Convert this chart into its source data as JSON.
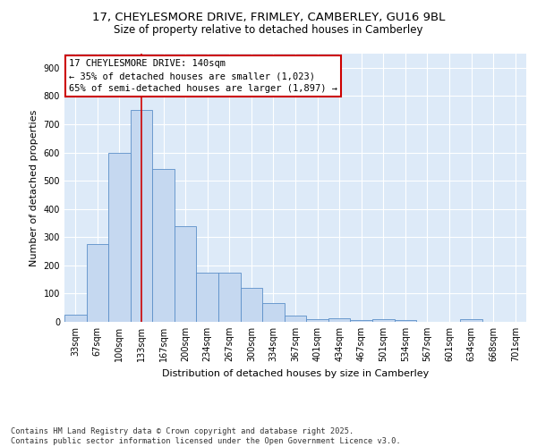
{
  "title_line1": "17, CHEYLESMORE DRIVE, FRIMLEY, CAMBERLEY, GU16 9BL",
  "title_line2": "Size of property relative to detached houses in Camberley",
  "xlabel": "Distribution of detached houses by size in Camberley",
  "ylabel": "Number of detached properties",
  "categories": [
    "33sqm",
    "67sqm",
    "100sqm",
    "133sqm",
    "167sqm",
    "200sqm",
    "234sqm",
    "267sqm",
    "300sqm",
    "334sqm",
    "367sqm",
    "401sqm",
    "434sqm",
    "467sqm",
    "501sqm",
    "534sqm",
    "567sqm",
    "601sqm",
    "634sqm",
    "668sqm",
    "701sqm"
  ],
  "values": [
    25,
    275,
    600,
    750,
    540,
    340,
    175,
    175,
    120,
    68,
    22,
    10,
    13,
    5,
    8,
    5,
    0,
    0,
    8,
    0,
    0
  ],
  "bar_color": "#c5d8f0",
  "bar_edge_color": "#5b8fc9",
  "bg_color": "#ddeaf8",
  "grid_color": "#ffffff",
  "vline_x": 3,
  "vline_color": "#cc0000",
  "annotation_text": "17 CHEYLESMORE DRIVE: 140sqm\n← 35% of detached houses are smaller (1,023)\n65% of semi-detached houses are larger (1,897) →",
  "annotation_box_color": "#cc0000",
  "ylim": [
    0,
    950
  ],
  "yticks": [
    0,
    100,
    200,
    300,
    400,
    500,
    600,
    700,
    800,
    900
  ],
  "footnote": "Contains HM Land Registry data © Crown copyright and database right 2025.\nContains public sector information licensed under the Open Government Licence v3.0.",
  "title_fontsize": 9.5,
  "subtitle_fontsize": 8.5,
  "axis_label_fontsize": 8,
  "tick_fontsize": 7,
  "annotation_fontsize": 7.5
}
